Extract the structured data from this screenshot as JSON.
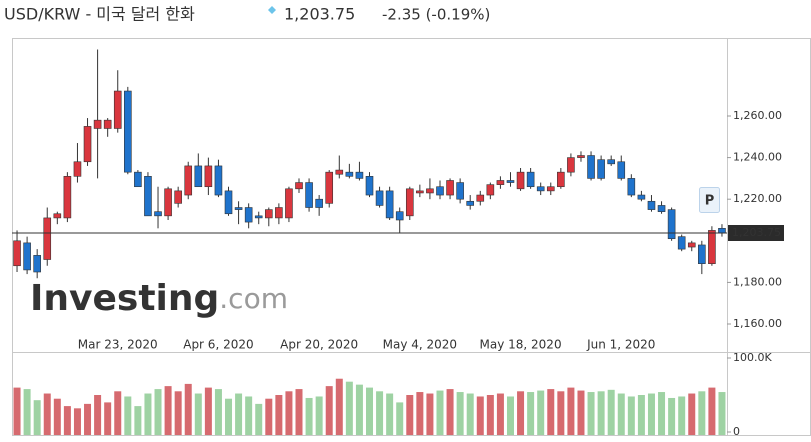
{
  "chart_data": {
    "type": "candlestick",
    "title": "USD/KRW - 미국 달러 한화",
    "price": "1,203.75",
    "change": "-2.35 (-0.19%)",
    "watermark": [
      "Investing",
      ".com"
    ],
    "p_button": "P",
    "categories": [
      null,
      null,
      null,
      null,
      null,
      null,
      null,
      null,
      null,
      null,
      "Mar 23, 2020",
      null,
      null,
      null,
      null,
      null,
      null,
      null,
      null,
      null,
      "Apr 6, 2020",
      null,
      null,
      null,
      null,
      null,
      null,
      null,
      null,
      null,
      "Apr 20, 2020",
      null,
      null,
      null,
      null,
      null,
      null,
      null,
      null,
      null,
      "May 4, 2020",
      null,
      null,
      null,
      null,
      null,
      null,
      null,
      null,
      null,
      "May 18, 2020",
      null,
      null,
      null,
      null,
      null,
      null,
      null,
      null,
      null,
      "Jun 1, 2020",
      null,
      null,
      null,
      null,
      null,
      null,
      null,
      null,
      null,
      null
    ],
    "open": [
      1188,
      1199,
      1193,
      1191,
      1211,
      1211,
      1231,
      1238,
      1254,
      1254,
      1254,
      1272,
      1233,
      1231,
      1214,
      1212,
      1218,
      1222,
      1236,
      1226,
      1236,
      1224,
      1216,
      1216,
      1212,
      1211,
      1211,
      1211,
      1225,
      1228,
      1220,
      1218,
      1232,
      1233,
      1233,
      1231,
      1224,
      1224,
      1214,
      1212,
      1223,
      1223,
      1226,
      1222,
      1228,
      1219,
      1219,
      1222,
      1227,
      1229,
      1225,
      1233,
      1226,
      1224,
      1226,
      1233,
      1240,
      1241,
      1239,
      1239,
      1238,
      1230,
      1222,
      1219,
      1217,
      1215,
      1202,
      1197,
      1198,
      1189,
      1206
    ],
    "high": [
      1205,
      1202,
      1196,
      1216,
      1214,
      1233,
      1247,
      1259,
      1292,
      1259,
      1282,
      1274,
      1234,
      1233,
      1226,
      1226,
      1226,
      1238,
      1242,
      1240,
      1239,
      1226,
      1219,
      1218,
      1214,
      1216,
      1218,
      1226,
      1230,
      1230,
      1222,
      1234,
      1241,
      1237,
      1238,
      1233,
      1226,
      1226,
      1216,
      1226,
      1227,
      1230,
      1229,
      1230,
      1230,
      1222,
      1224,
      1228,
      1231,
      1233,
      1235,
      1235,
      1228,
      1228,
      1235,
      1242,
      1243,
      1243,
      1241,
      1241,
      1241,
      1232,
      1224,
      1222,
      1219,
      1216,
      1203,
      1200,
      1200,
      1207,
      1208
    ],
    "low": [
      1185,
      1184,
      1182,
      1188,
      1208,
      1209,
      1228,
      1236,
      1230,
      1250,
      1252,
      1232,
      1226,
      1212,
      1206,
      1210,
      1216,
      1220,
      1226,
      1222,
      1221,
      1212,
      1208,
      1206,
      1208,
      1207,
      1208,
      1209,
      1223,
      1214,
      1212,
      1216,
      1230,
      1230,
      1229,
      1221,
      1216,
      1210,
      1204,
      1210,
      1221,
      1220,
      1220,
      1220,
      1218,
      1215,
      1217,
      1220,
      1225,
      1226,
      1224,
      1225,
      1222,
      1222,
      1225,
      1231,
      1238,
      1229,
      1229,
      1236,
      1229,
      1221,
      1219,
      1214,
      1213,
      1200,
      1195,
      1195,
      1184,
      1188,
      1202
    ],
    "close": [
      1200,
      1186,
      1185,
      1211,
      1213,
      1231,
      1238,
      1255,
      1258,
      1258,
      1272,
      1233,
      1226,
      1212,
      1212,
      1225,
      1224,
      1236,
      1226,
      1236,
      1222,
      1213,
      1215,
      1209,
      1211,
      1215,
      1216,
      1225,
      1228,
      1216,
      1216,
      1233,
      1234,
      1231,
      1230,
      1222,
      1217,
      1211,
      1210,
      1225,
      1224,
      1225,
      1222,
      1229,
      1220,
      1217,
      1222,
      1227,
      1229,
      1228,
      1233,
      1226,
      1224,
      1226,
      1233,
      1240,
      1241,
      1230,
      1230,
      1237,
      1230,
      1222,
      1220,
      1215,
      1214,
      1201,
      1196,
      1199,
      1189,
      1205,
      1203.75
    ],
    "volume": [
      60000,
      58000,
      43000,
      52000,
      45000,
      35000,
      32000,
      38000,
      50000,
      40000,
      55000,
      48000,
      35000,
      52000,
      58000,
      62000,
      55000,
      65000,
      52000,
      60000,
      58000,
      45000,
      52000,
      48000,
      38000,
      45000,
      50000,
      55000,
      58000,
      46000,
      48000,
      62000,
      72000,
      68000,
      64000,
      60000,
      55000,
      52000,
      40000,
      50000,
      54000,
      52000,
      56000,
      58000,
      54000,
      52000,
      48000,
      50000,
      52000,
      48000,
      55000,
      54000,
      56000,
      58000,
      55000,
      60000,
      56000,
      54000,
      55000,
      57000,
      52000,
      48000,
      50000,
      52000,
      54000,
      46000,
      48000,
      52000,
      55000,
      60000,
      54000
    ],
    "up_color": "#d9363e",
    "down_color": "#1f73cc",
    "volume_up_color": "#d66a6f",
    "volume_down_color": "#9ed2a3",
    "ylim": [
      1147.5,
      1297.5
    ],
    "yticks": [
      {
        "value": 1160,
        "label": "1,160.00"
      },
      {
        "value": 1180,
        "label": "1,180.00"
      },
      {
        "value": 1220,
        "label": "1,220.00"
      },
      {
        "value": 1240,
        "label": "1,240.00"
      },
      {
        "value": 1260,
        "label": "1,260.00"
      }
    ],
    "volume_ylim": [
      0,
      100000
    ],
    "volume_ticks": [
      {
        "value": 100000,
        "label": "100.0K"
      },
      0
    ],
    "last_price": {
      "value": 1203.75,
      "label": "1,203.75"
    }
  }
}
